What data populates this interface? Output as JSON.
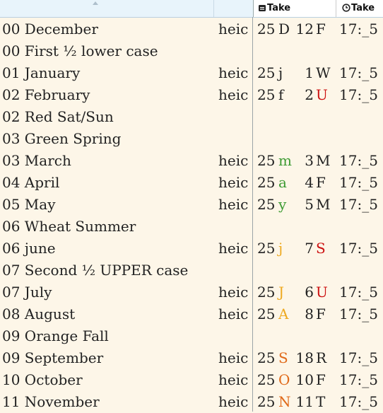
{
  "header": {
    "take_label_1": "Take",
    "take_label_2": "Take",
    "icons": [
      "calendar-icon",
      "clock-icon",
      "sort-ascending-icon"
    ]
  },
  "colors": {
    "red": "#cc1111",
    "green": "#3c9a32",
    "yellow": "#eeaa22",
    "orange": "#e06a1a",
    "default": "#222222"
  },
  "rows": [
    {
      "name": "00 December",
      "ext": "heic",
      "year": "25",
      "month": "D",
      "month_color": "default",
      "day_num": "12",
      "day_letter": "F",
      "day_color": "default",
      "time": "17:_5"
    },
    {
      "name": "00 First ½ lower case",
      "ext": "",
      "year": "",
      "month": "",
      "month_color": "default",
      "day_num": "",
      "day_letter": "",
      "day_color": "default",
      "time": ""
    },
    {
      "name": "01 January",
      "ext": "heic",
      "year": "25",
      "month": "j",
      "month_color": "default",
      "day_num": "1",
      "day_letter": "W",
      "day_color": "default",
      "time": "17:_5"
    },
    {
      "name": "02 February",
      "ext": "heic",
      "year": "25",
      "month": "f",
      "month_color": "default",
      "day_num": "2",
      "day_letter": "U",
      "day_color": "red",
      "time": "17:_5"
    },
    {
      "name": "02 Red Sat/Sun",
      "ext": "",
      "year": "",
      "month": "",
      "month_color": "default",
      "day_num": "",
      "day_letter": "",
      "day_color": "default",
      "time": ""
    },
    {
      "name": "03 Green Spring",
      "ext": "",
      "year": "",
      "month": "",
      "month_color": "default",
      "day_num": "",
      "day_letter": "",
      "day_color": "default",
      "time": ""
    },
    {
      "name": "03 March",
      "ext": "heic",
      "year": "25",
      "month": "m",
      "month_color": "green",
      "day_num": "3",
      "day_letter": "M",
      "day_color": "default",
      "time": "17:_5"
    },
    {
      "name": "04 April",
      "ext": "heic",
      "year": "25",
      "month": "a",
      "month_color": "green",
      "day_num": "4",
      "day_letter": "F",
      "day_color": "default",
      "time": "17:_5"
    },
    {
      "name": "05 May",
      "ext": "heic",
      "year": "25",
      "month": "y",
      "month_color": "green",
      "day_num": "5",
      "day_letter": "M",
      "day_color": "default",
      "time": "17:_5"
    },
    {
      "name": "06  Wheat Summer",
      "ext": "",
      "year": "",
      "month": "",
      "month_color": "default",
      "day_num": "",
      "day_letter": "",
      "day_color": "default",
      "time": ""
    },
    {
      "name": "06 june",
      "ext": "heic",
      "year": "25",
      "month": "j",
      "month_color": "yellow",
      "day_num": "7",
      "day_letter": "S",
      "day_color": "red",
      "time": "17:_5"
    },
    {
      "name": "07  Second ½ UPPER case",
      "ext": "",
      "year": "",
      "month": "",
      "month_color": "default",
      "day_num": "",
      "day_letter": "",
      "day_color": "default",
      "time": ""
    },
    {
      "name": "07 July",
      "ext": "heic",
      "year": "25",
      "month": "J",
      "month_color": "yellow",
      "day_num": "6",
      "day_letter": "U",
      "day_color": "red",
      "time": "17:_5"
    },
    {
      "name": "08 August",
      "ext": "heic",
      "year": "25",
      "month": "A",
      "month_color": "yellow",
      "day_num": "8",
      "day_letter": "F",
      "day_color": "default",
      "time": "17:_5"
    },
    {
      "name": "09 Orange Fall",
      "ext": "",
      "year": "",
      "month": "",
      "month_color": "default",
      "day_num": "",
      "day_letter": "",
      "day_color": "default",
      "time": ""
    },
    {
      "name": "09 September",
      "ext": "heic",
      "year": "25",
      "month": "S",
      "month_color": "orange",
      "day_num": "18",
      "day_letter": "R",
      "day_color": "default",
      "time": "17:_5"
    },
    {
      "name": "10 October",
      "ext": "heic",
      "year": "25",
      "month": "O",
      "month_color": "orange",
      "day_num": "10",
      "day_letter": "F",
      "day_color": "default",
      "time": "17:_5"
    },
    {
      "name": "11 November",
      "ext": "heic",
      "year": "25",
      "month": "N",
      "month_color": "orange",
      "day_num": "11",
      "day_letter": "T",
      "day_color": "default",
      "time": "17:_5"
    }
  ]
}
